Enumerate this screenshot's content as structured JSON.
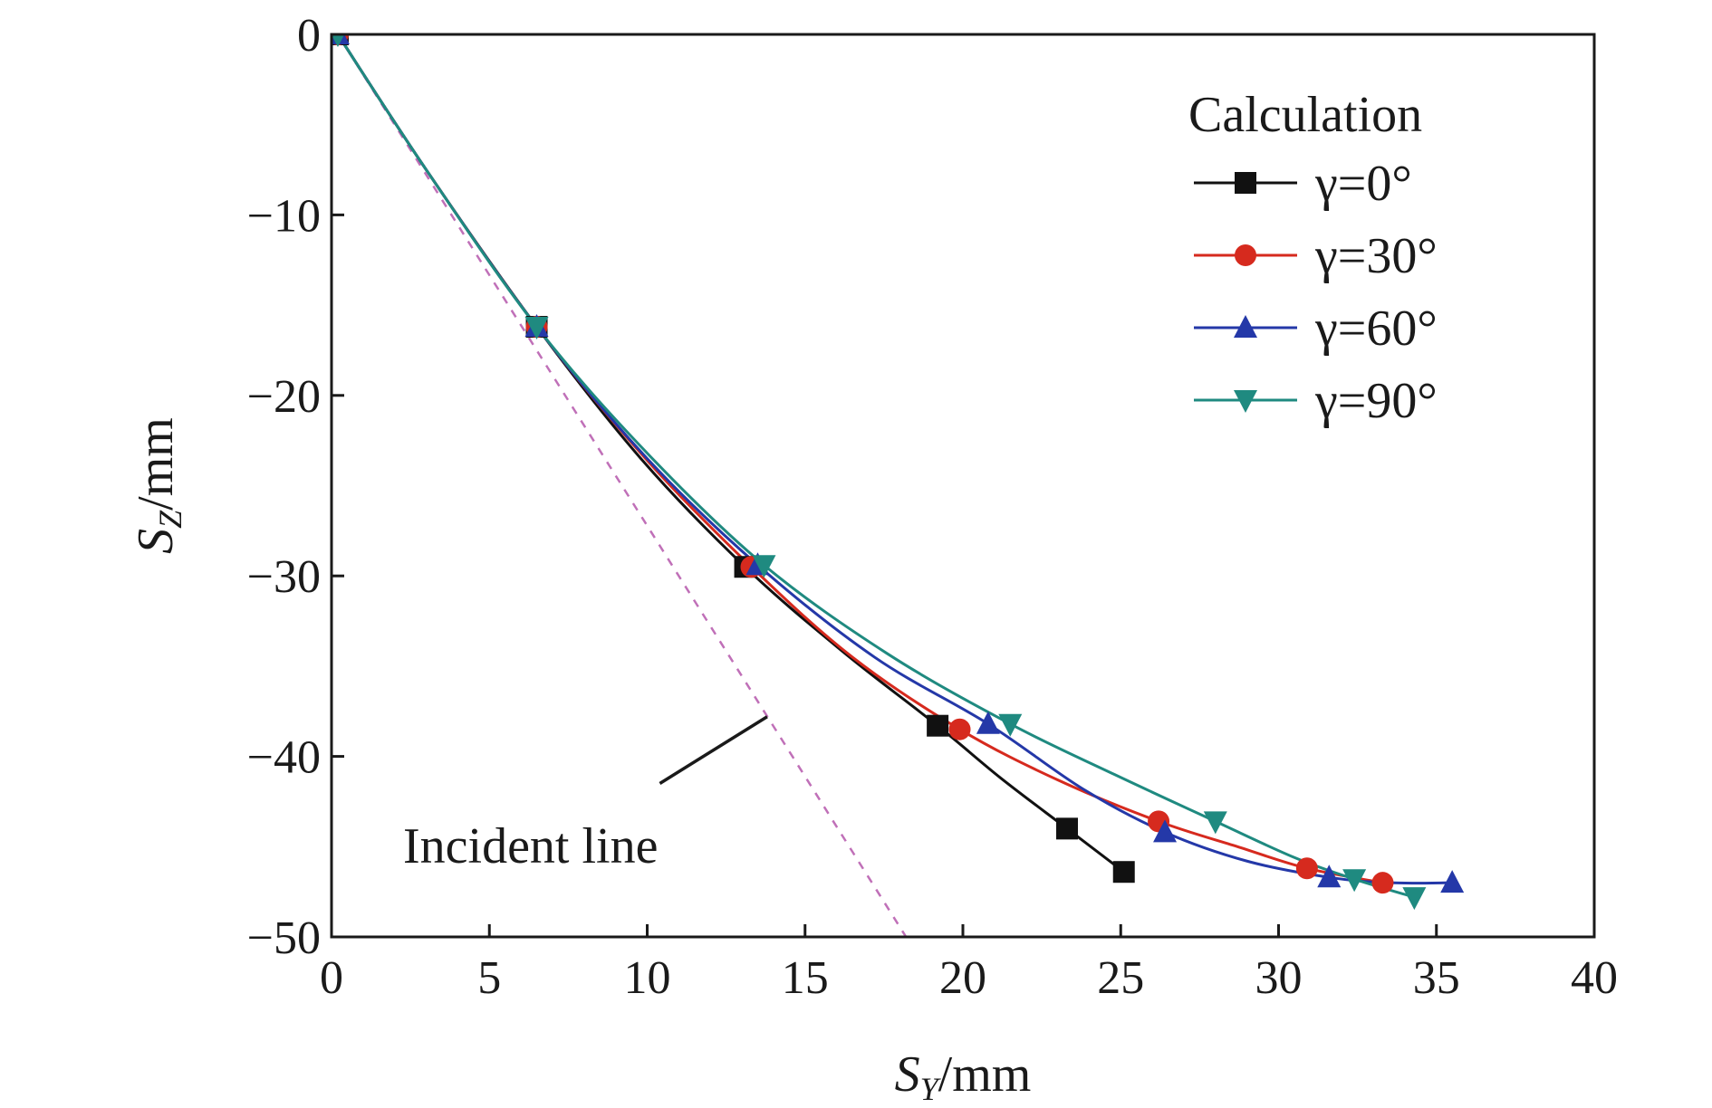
{
  "chart_data": {
    "type": "line",
    "xlabel_var": "S",
    "xlabel_sub": "Y",
    "xlabel_unit": "/mm",
    "ylabel_var": "S",
    "ylabel_sub": "Z",
    "ylabel_unit": "/mm",
    "xlim": [
      0,
      40
    ],
    "ylim": [
      -50,
      0
    ],
    "xticks": [
      "0",
      "5",
      "10",
      "15",
      "20",
      "25",
      "30",
      "35",
      "40"
    ],
    "yticks": [
      "0",
      "−10",
      "−20",
      "−30",
      "−40",
      "−50"
    ],
    "xtick_values": [
      0,
      5,
      10,
      15,
      20,
      25,
      30,
      35,
      40
    ],
    "ytick_values": [
      0,
      -10,
      -20,
      -30,
      -40,
      -50
    ],
    "grid": false,
    "legend_title": "Calculation",
    "legend_position": "top-right",
    "series": [
      {
        "name": "γ=0°",
        "color": "#111111",
        "marker": "square",
        "curve": [
          [
            0.2,
            0
          ],
          [
            3,
            -7.5
          ],
          [
            6.5,
            -16.2
          ],
          [
            9.8,
            -23.5
          ],
          [
            13.1,
            -29.5
          ],
          [
            16.2,
            -34.2
          ],
          [
            19.2,
            -38.3
          ],
          [
            21.2,
            -41.2
          ],
          [
            23.3,
            -44
          ],
          [
            25.1,
            -46.4
          ]
        ],
        "markers": [
          [
            0.2,
            0
          ],
          [
            6.5,
            -16.2
          ],
          [
            13.1,
            -29.5
          ],
          [
            19.2,
            -38.3
          ],
          [
            23.3,
            -44
          ],
          [
            25.1,
            -46.4
          ]
        ]
      },
      {
        "name": "γ=30°",
        "color": "#d62a1e",
        "marker": "circle",
        "curve": [
          [
            0.2,
            0
          ],
          [
            3,
            -7.5
          ],
          [
            6.5,
            -16.2
          ],
          [
            10,
            -23.6
          ],
          [
            13.3,
            -29.5
          ],
          [
            16.5,
            -34.5
          ],
          [
            19.9,
            -38.5
          ],
          [
            23,
            -41.3
          ],
          [
            26.2,
            -43.6
          ],
          [
            28.7,
            -45
          ],
          [
            30.9,
            -46.2
          ],
          [
            33.3,
            -47
          ]
        ],
        "markers": [
          [
            0.2,
            0
          ],
          [
            6.5,
            -16.2
          ],
          [
            13.3,
            -29.5
          ],
          [
            19.9,
            -38.5
          ],
          [
            26.2,
            -43.6
          ],
          [
            30.9,
            -46.2
          ],
          [
            33.3,
            -47
          ]
        ]
      },
      {
        "name": "γ=60°",
        "color": "#2438a8",
        "marker": "triangle-up",
        "curve": [
          [
            0.2,
            0
          ],
          [
            3,
            -7.5
          ],
          [
            6.5,
            -16.2
          ],
          [
            10,
            -23.5
          ],
          [
            13.5,
            -29.4
          ],
          [
            17.2,
            -34.5
          ],
          [
            20.8,
            -38.2
          ],
          [
            23.8,
            -41.8
          ],
          [
            26.4,
            -44.2
          ],
          [
            29,
            -45.8
          ],
          [
            31.6,
            -46.7
          ],
          [
            33.5,
            -47
          ],
          [
            35.5,
            -47
          ]
        ],
        "markers": [
          [
            0.2,
            0
          ],
          [
            6.5,
            -16.2
          ],
          [
            13.5,
            -29.4
          ],
          [
            20.8,
            -38.2
          ],
          [
            26.4,
            -44.2
          ],
          [
            31.6,
            -46.7
          ],
          [
            35.5,
            -47
          ]
        ]
      },
      {
        "name": "γ=90°",
        "color": "#1f8a80",
        "marker": "triangle-down",
        "curve": [
          [
            0.2,
            0
          ],
          [
            3,
            -7.5
          ],
          [
            6.5,
            -16.2
          ],
          [
            10,
            -23.2
          ],
          [
            13.7,
            -29.4
          ],
          [
            17.6,
            -34.3
          ],
          [
            21.5,
            -38.2
          ],
          [
            24.8,
            -41
          ],
          [
            28,
            -43.6
          ],
          [
            30.5,
            -45.6
          ],
          [
            32.4,
            -46.8
          ],
          [
            34.3,
            -47.8
          ]
        ],
        "markers": [
          [
            0.2,
            0
          ],
          [
            6.5,
            -16.2
          ],
          [
            13.7,
            -29.4
          ],
          [
            21.5,
            -38.2
          ],
          [
            28,
            -43.6
          ],
          [
            32.4,
            -46.8
          ],
          [
            34.3,
            -47.8
          ]
        ]
      }
    ],
    "reference_line": {
      "color": "#c070b8",
      "style": "dashed",
      "points": [
        [
          0.2,
          0
        ],
        [
          18.2,
          -50
        ]
      ]
    },
    "annotation": {
      "text": "Incident line",
      "arrow_from": [
        10.4,
        -41.5
      ],
      "arrow_to": [
        13.8,
        -37.8
      ]
    }
  }
}
